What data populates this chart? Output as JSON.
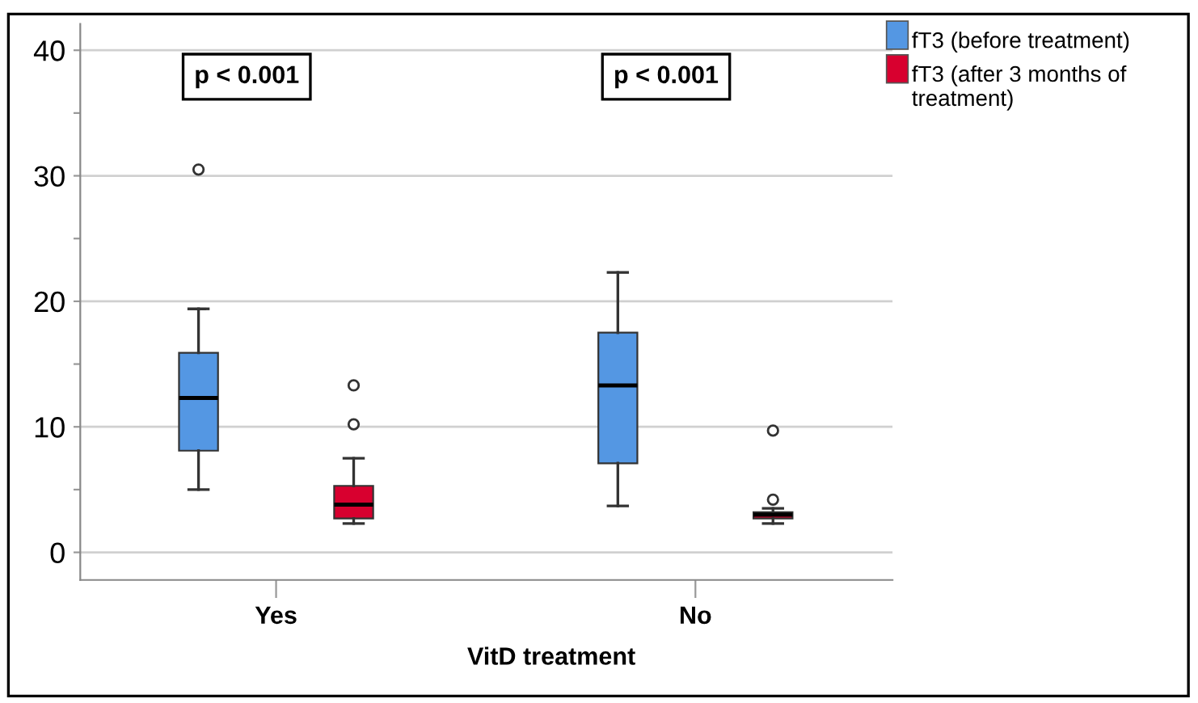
{
  "chart_data": {
    "type": "box",
    "xlabel": "VitD treatment",
    "categories": [
      "Yes",
      "No"
    ],
    "ylim": [
      -2.2,
      42.1
    ],
    "yticks": [
      0,
      {
        "value": 5,
        "label": null
      },
      10,
      {
        "value": 15,
        "label": null
      },
      20,
      {
        "value": 25,
        "label": null
      },
      30,
      {
        "value": 35,
        "label": null
      },
      40
    ],
    "grid": "y",
    "legend": "top right",
    "annotations": [
      "p < 0.001",
      "p < 0.001"
    ],
    "series": [
      {
        "name": "fT3 (before treatment)",
        "color": "#5497e3",
        "boxes": [
          {
            "low": 5.0,
            "q1": 8.1,
            "median": 12.3,
            "q3": 15.9,
            "high": 19.4,
            "outliers": [
              30.5
            ]
          },
          {
            "low": 3.7,
            "q1": 7.1,
            "median": 13.3,
            "q3": 17.5,
            "high": 22.3
          }
        ]
      },
      {
        "name": "fT3 (after 3 months of treatment)",
        "color": "#d8002f",
        "boxes": [
          {
            "low": 2.3,
            "q1": 2.7,
            "median": 3.8,
            "q3": 5.3,
            "high": 7.5,
            "outliers": [
              10.2,
              13.3
            ]
          },
          {
            "low": 2.3,
            "q1": 2.7,
            "median": 3.0,
            "q3": 3.2,
            "high": 3.5,
            "outliers": [
              4.2,
              9.7
            ]
          }
        ]
      }
    ]
  }
}
